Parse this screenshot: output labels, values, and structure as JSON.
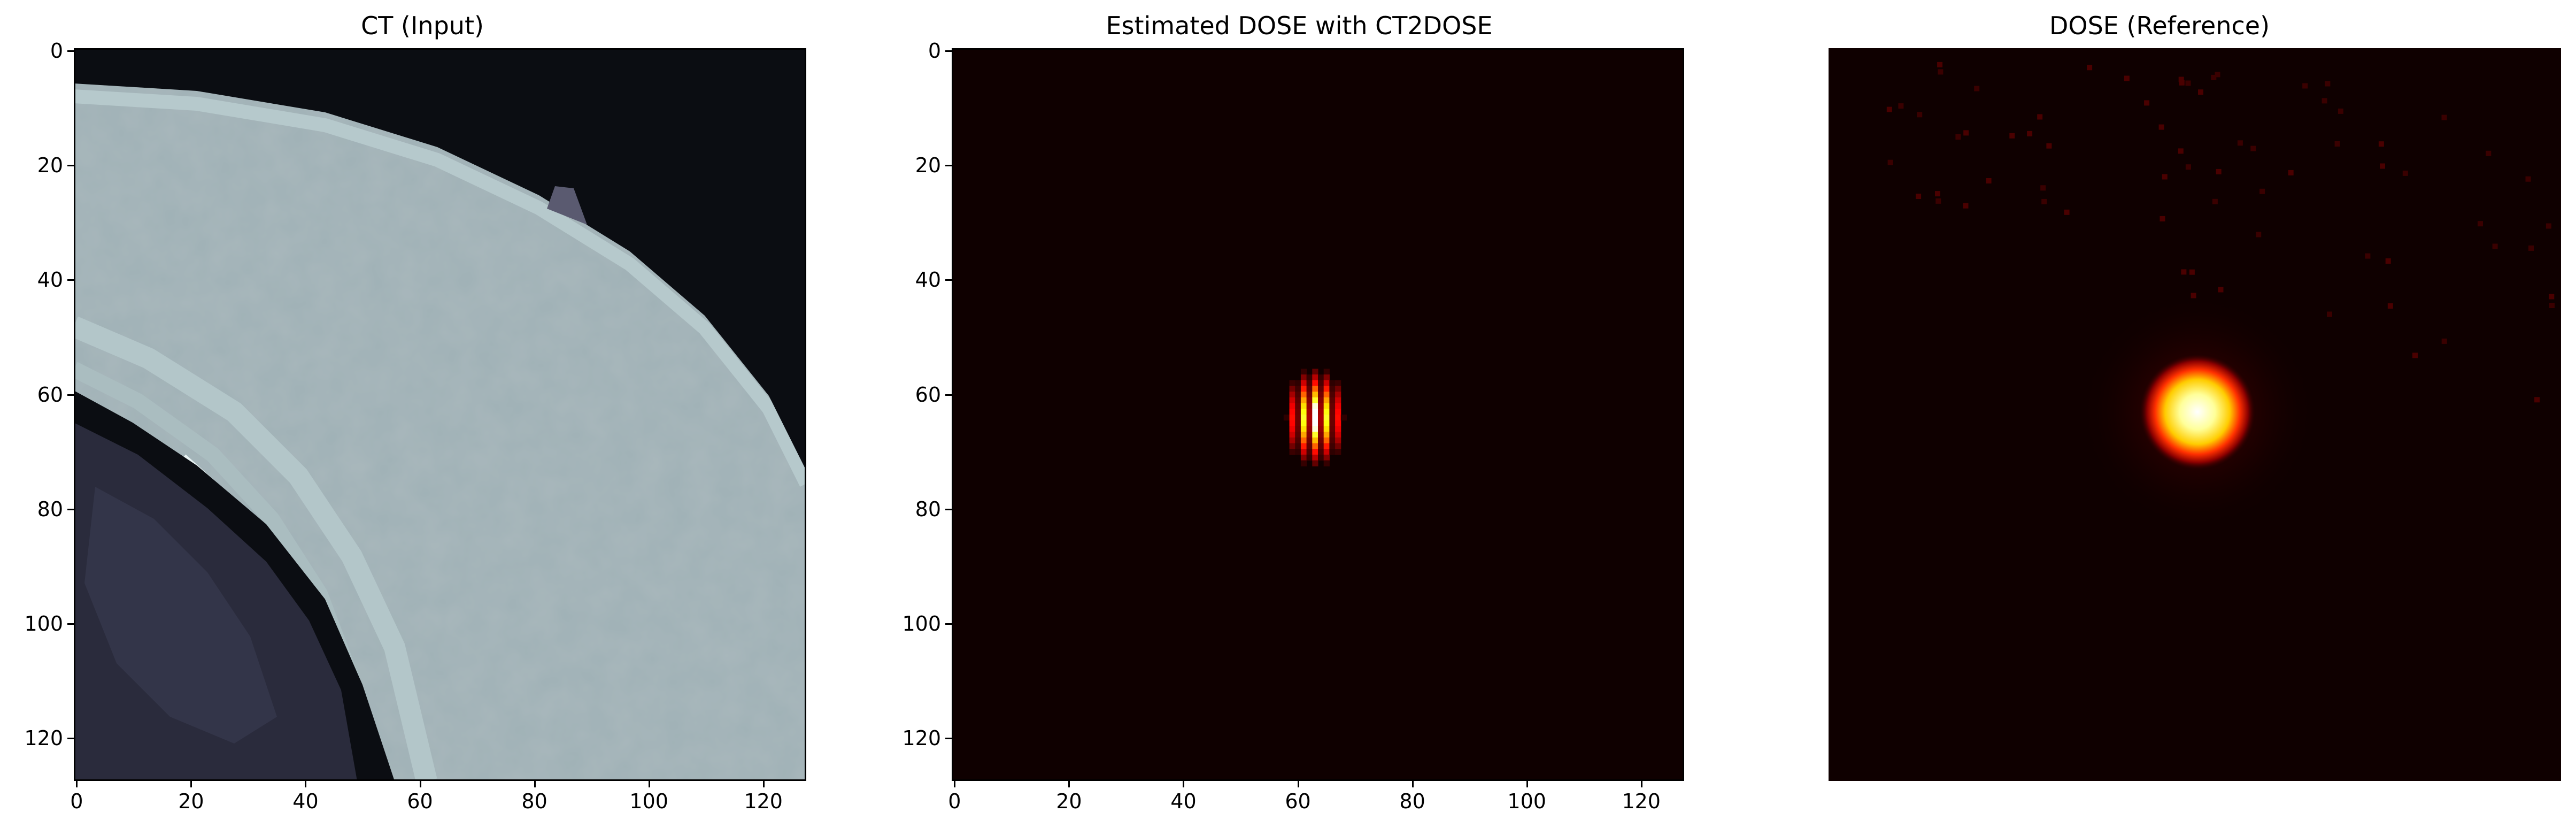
{
  "chart_data": [
    {
      "type": "heatmap",
      "title": "CT (Input)",
      "colormap": "bone",
      "xlim": [
        0,
        127
      ],
      "ylim": [
        127,
        0
      ],
      "xticks": [
        "0",
        "20",
        "40",
        "60",
        "80",
        "100",
        "120"
      ],
      "yticks": [
        "0",
        "20",
        "40",
        "60",
        "80",
        "100",
        "120"
      ],
      "content": "curved soft-tissue/bone band across image on dark air background; lung region at lower left",
      "axes_visible": true
    },
    {
      "type": "heatmap",
      "title": "Estimated DOSE with CT2DOSE",
      "colormap": "hot",
      "xlim": [
        0,
        127
      ],
      "ylim": [
        127,
        0
      ],
      "xticks": [
        "0",
        "20",
        "40",
        "60",
        "80",
        "100",
        "120"
      ],
      "yticks": [
        "0",
        "20",
        "40",
        "60",
        "80",
        "100",
        "120"
      ],
      "hotspot_center": [
        63,
        64
      ],
      "hotspot_pattern": "vertical striped bars",
      "axes_visible": true
    },
    {
      "type": "heatmap",
      "title": "DOSE (Reference)",
      "colormap": "hot",
      "hotspot_center": [
        63,
        63
      ],
      "hotspot_pattern": "round blob with scattered low-level dots in upper right",
      "axes_visible": false
    }
  ],
  "colors": {
    "background": "#ffffff",
    "dose_background": "#0f0000",
    "air": "#0b0d12",
    "tissue": "#9fb1b6"
  }
}
